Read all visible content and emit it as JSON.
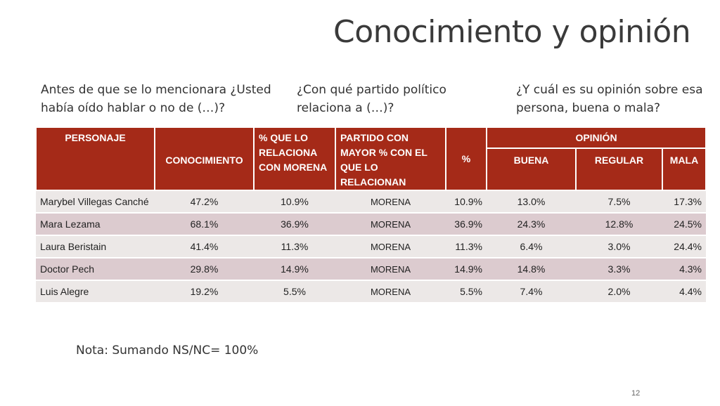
{
  "slide": {
    "title": "Conocimiento y opinión",
    "questions": [
      "Antes de que se lo mencionara ¿Usted había oído hablar o no de (…)?",
      "¿Con qué partido político relaciona a (…)?",
      "¿Y cuál es su opinión sobre esa persona, buena o mala?"
    ],
    "note": "Nota: Sumando NS/NC= 100%",
    "page_number": "12"
  },
  "table": {
    "headers": {
      "personaje": "PERSONAJE",
      "conocimiento": "CONOCIMIENTO",
      "relaciona_morena": "% QUE LO RELACIONA CON MORENA",
      "partido": "PARTIDO CON MAYOR % CON EL QUE LO RELACIONAN",
      "pct": "%",
      "opinion": "OPINIÓN",
      "buena": "BUENA",
      "regular": "REGULAR",
      "mala": "MALA"
    },
    "rows": [
      {
        "name": "Marybel Villegas Canché",
        "conocimiento": "47.2%",
        "morena": "10.9%",
        "partido": "MORENA",
        "pct": "10.9%",
        "buena": "13.0%",
        "regular": "7.5%",
        "mala": "17.3%"
      },
      {
        "name": "Mara Lezama",
        "conocimiento": "68.1%",
        "morena": "36.9%",
        "partido": "MORENA",
        "pct": "36.9%",
        "buena": "24.3%",
        "regular": "12.8%",
        "mala": "24.5%"
      },
      {
        "name": "Laura Beristain",
        "conocimiento": "41.4%",
        "morena": "11.3%",
        "partido": "MORENA",
        "pct": "11.3%",
        "buena": "6.4%",
        "regular": "3.0%",
        "mala": "24.4%"
      },
      {
        "name": "Doctor Pech",
        "conocimiento": "29.8%",
        "morena": "14.9%",
        "partido": "MORENA",
        "pct": "14.9%",
        "buena": "14.8%",
        "regular": "3.3%",
        "mala": "4.3%"
      },
      {
        "name": "Luis Alegre",
        "conocimiento": "19.2%",
        "morena": "5.5%",
        "partido": "MORENA",
        "pct": "5.5%",
        "buena": "7.4%",
        "regular": "2.0%",
        "mala": "4.4%"
      }
    ]
  },
  "colors": {
    "header_red": "#a52a18",
    "row_light": "#ece8e7",
    "row_pink": "#dccbcf"
  }
}
